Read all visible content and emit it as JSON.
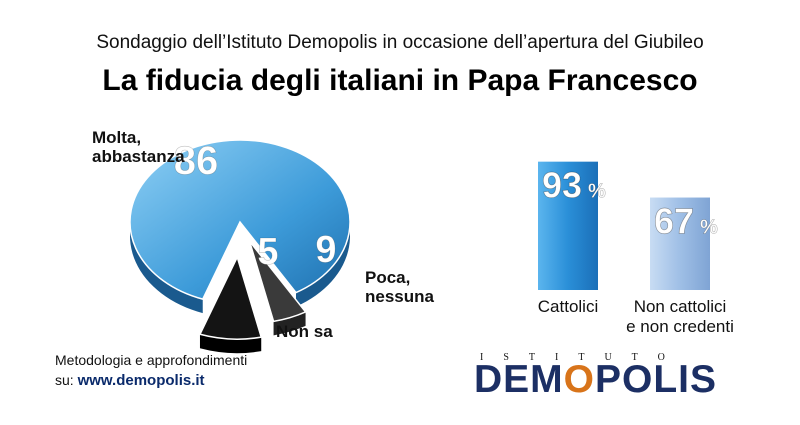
{
  "header": {
    "subtitle": "Sondaggio dell’Istituto Demopolis in occasione dell’apertura del Giubileo",
    "title": "La fiducia degli italiani in Papa Francesco"
  },
  "chart_data": [
    {
      "type": "pie",
      "title": "",
      "slices": [
        {
          "label": "Molta, abbastanza",
          "value": 86,
          "value_label": "86",
          "color": "#4aa3dc"
        },
        {
          "label": "Non sa",
          "value": 5,
          "value_label": "5",
          "color": "#3a3a3a"
        },
        {
          "label": "Poca, nessuna",
          "value": 9,
          "value_label": "9",
          "color": "#111111"
        }
      ]
    },
    {
      "type": "bar",
      "title": "",
      "categories": [
        "Cattolici",
        "Non cattolici e non credenti"
      ],
      "category_lines": [
        [
          "Cattolici"
        ],
        [
          "Non cattolici",
          "e non credenti"
        ]
      ],
      "values": [
        93,
        67
      ],
      "value_labels": [
        "93",
        "67"
      ],
      "unit": "%",
      "colors": [
        "#2a8fd8",
        "#9fbfe6"
      ],
      "ylim": [
        0,
        100
      ]
    }
  ],
  "footer": {
    "line1": "Metodologia e approfondimenti",
    "prefix": "su:",
    "link": "www.demopolis.it"
  },
  "brand": {
    "small": "ISTITUTO",
    "name_a": "DEM",
    "name_o": "O",
    "name_b": "POLIS"
  }
}
